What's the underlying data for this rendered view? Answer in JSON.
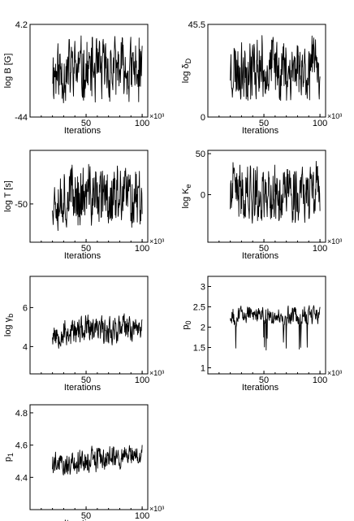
{
  "chart_data": [
    {
      "type": "line",
      "ylabel": "log B [G]",
      "xlabel": "Iterations",
      "x_multiplier": "×10³",
      "xlim": [
        0,
        105
      ],
      "xticks": [
        "50",
        "100"
      ],
      "ylim": [
        -44,
        4.2
      ],
      "yticks": [
        "4.2",
        "-44"
      ],
      "trace": {
        "start": 20,
        "end": 100,
        "center": -20,
        "amplitude": 20,
        "wiggle": 0.45,
        "seed": 11
      }
    },
    {
      "type": "line",
      "ylabel": "log δ_D",
      "xlabel": "Iterations",
      "x_multiplier": "×10³",
      "xlim": [
        0,
        105
      ],
      "xticks": [
        "50",
        "100"
      ],
      "ylim": [
        0,
        45.5
      ],
      "yticks": [
        "45.5",
        "0"
      ],
      "trace": {
        "start": 20,
        "end": 100,
        "center": 24,
        "amplitude": 18,
        "wiggle": 0.45,
        "seed": 23
      }
    },
    {
      "type": "line",
      "ylabel": "log T [s]",
      "xlabel": "Iterations",
      "x_multiplier": "×10³",
      "xlim": [
        0,
        105
      ],
      "xticks": [
        "50",
        "100"
      ],
      "ylim": [
        -90,
        6
      ],
      "yticks": [
        "-50"
      ],
      "trace": {
        "start": 20,
        "end": 100,
        "center": -42,
        "amplitude": 38,
        "wiggle": 0.45,
        "seed": 37
      }
    },
    {
      "type": "line",
      "ylabel": "log K_e",
      "xlabel": "Iterations",
      "x_multiplier": "×10³",
      "xlim": [
        0,
        105
      ],
      "xticks": [
        "50",
        "100"
      ],
      "ylim": [
        -58,
        54
      ],
      "yticks": [
        "50",
        "0"
      ],
      "trace": {
        "start": 20,
        "end": 100,
        "center": 2,
        "amplitude": 42,
        "wiggle": 0.45,
        "seed": 41
      }
    },
    {
      "type": "line",
      "ylabel": "log γ_b",
      "xlabel": "Iterations",
      "x_multiplier": "×10³",
      "xlim": [
        0,
        105
      ],
      "xticks": [
        "50",
        "100"
      ],
      "ylim": [
        2.6,
        7.6
      ],
      "yticks": [
        "6",
        "4"
      ],
      "trace": {
        "start": 20,
        "end": 100,
        "center": 4.7,
        "amplitude": 0.9,
        "wiggle": 0.35,
        "seed": 53,
        "trend": 0.3
      }
    },
    {
      "type": "line",
      "ylabel": "p_0",
      "xlabel": "Iterations",
      "x_multiplier": "×10³",
      "xlim": [
        0,
        105
      ],
      "xticks": [
        "50",
        "100"
      ],
      "ylim": [
        0.85,
        3.25
      ],
      "yticks": [
        "3",
        "2.5",
        "2",
        "1.5",
        "1"
      ],
      "trace": {
        "start": 20,
        "end": 100,
        "center": 2.3,
        "amplitude": 0.28,
        "wiggle": 0.3,
        "seed": 67,
        "dips": 0.9
      }
    },
    {
      "type": "line",
      "ylabel": "p_1",
      "xlabel": "Iterations",
      "x_multiplier": "×10³",
      "xlim": [
        0,
        105
      ],
      "xticks": [
        "50",
        "100"
      ],
      "ylim": [
        4.2,
        4.85
      ],
      "yticks": [
        "4.8",
        "4.6",
        "4.4"
      ],
      "trace": {
        "start": 20,
        "end": 100,
        "center": 4.48,
        "amplitude": 0.1,
        "wiggle": 0.3,
        "seed": 79,
        "trend": 0.06
      }
    }
  ]
}
